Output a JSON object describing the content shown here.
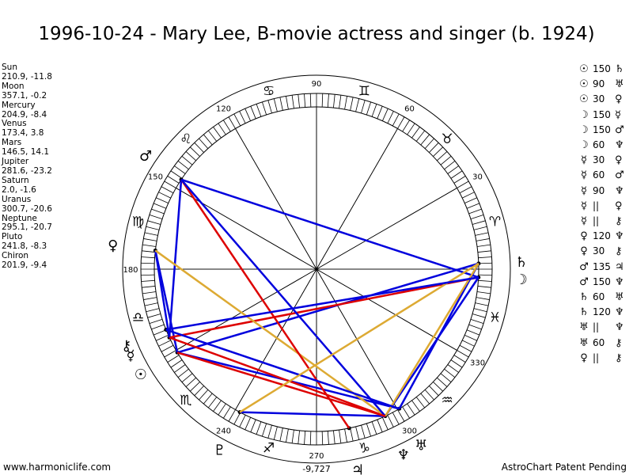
{
  "title": "1996-10-24 - Mary Lee, B-movie actress and singer (b. 1924)",
  "positions": [
    {
      "name": "Sun",
      "value": "210.9, -11.8"
    },
    {
      "name": "Moon",
      "value": "357.1, -0.2"
    },
    {
      "name": "Mercury",
      "value": "204.9, -8.4"
    },
    {
      "name": "Venus",
      "value": "173.4, 3.8"
    },
    {
      "name": "Mars",
      "value": "146.5, 14.1"
    },
    {
      "name": "Jupiter",
      "value": "281.6, -23.2"
    },
    {
      "name": "Saturn",
      "value": "2.0, -1.6"
    },
    {
      "name": "Uranus",
      "value": "300.7, -20.6"
    },
    {
      "name": "Neptune",
      "value": "295.1, -20.7"
    },
    {
      "name": "Pluto",
      "value": "241.8, -8.3"
    },
    {
      "name": "Chiron",
      "value": "201.9, -9.4"
    }
  ],
  "aspects": [
    {
      "a": "☉",
      "angle": "150",
      "b": "♄"
    },
    {
      "a": "☉",
      "angle": "90",
      "b": "♅"
    },
    {
      "a": "☉",
      "angle": "30",
      "b": "♀"
    },
    {
      "a": "☽",
      "angle": "150",
      "b": "☿"
    },
    {
      "a": "☽",
      "angle": "150",
      "b": "♂"
    },
    {
      "a": "☽",
      "angle": "60",
      "b": "♆"
    },
    {
      "a": "☿",
      "angle": "30",
      "b": "♀"
    },
    {
      "a": "☿",
      "angle": "60",
      "b": "♂"
    },
    {
      "a": "☿",
      "angle": "90",
      "b": "♆"
    },
    {
      "a": "☿",
      "angle": "||",
      "b": "♀"
    },
    {
      "a": "☿",
      "angle": "||",
      "b": "⚷"
    },
    {
      "a": "♀",
      "angle": "120",
      "b": "♆"
    },
    {
      "a": "♀",
      "angle": "30",
      "b": "⚷"
    },
    {
      "a": "♂",
      "angle": "135",
      "b": "♃"
    },
    {
      "a": "♂",
      "angle": "150",
      "b": "♆"
    },
    {
      "a": "♄",
      "angle": "60",
      "b": "♅"
    },
    {
      "a": "♄",
      "angle": "120",
      "b": "♆"
    },
    {
      "a": "♅",
      "angle": "||",
      "b": "♆"
    },
    {
      "a": "♅",
      "angle": "60",
      "b": "⚷"
    },
    {
      "a": "♀",
      "angle": "||",
      "b": "⚷"
    }
  ],
  "wheel": {
    "degree_labels": [
      "90",
      "60",
      "30",
      "330",
      "300",
      "270",
      "240",
      "180",
      "150",
      "120"
    ],
    "sign_glyphs": [
      "♈",
      "♉",
      "♊",
      "♋",
      "♌",
      "♍",
      "♎",
      "♏",
      "♐",
      "♑",
      "♒",
      "♓"
    ],
    "bottom_value": "-9,727"
  },
  "chart_data": {
    "type": "wheel",
    "planets": [
      {
        "name": "Sun",
        "glyph": "☉",
        "longitude": 210.9
      },
      {
        "name": "Moon",
        "glyph": "☽",
        "longitude": 357.1
      },
      {
        "name": "Mercury",
        "glyph": "☿",
        "longitude": 204.9
      },
      {
        "name": "Venus",
        "glyph": "♀",
        "longitude": 173.4
      },
      {
        "name": "Mars",
        "glyph": "♂",
        "longitude": 146.5
      },
      {
        "name": "Jupiter",
        "glyph": "♃",
        "longitude": 281.6
      },
      {
        "name": "Saturn",
        "glyph": "♄",
        "longitude": 2.0
      },
      {
        "name": "Uranus",
        "glyph": "♅",
        "longitude": 300.7
      },
      {
        "name": "Neptune",
        "glyph": "♆",
        "longitude": 295.1
      },
      {
        "name": "Pluto",
        "glyph": "♇",
        "longitude": 241.8
      },
      {
        "name": "Chiron",
        "glyph": "⚷",
        "longitude": 201.9
      }
    ],
    "aspect_lines": [
      {
        "from": "Sun",
        "to": "Saturn",
        "color": "#0000dd"
      },
      {
        "from": "Sun",
        "to": "Uranus",
        "color": "#0000dd"
      },
      {
        "from": "Sun",
        "to": "Venus",
        "color": "#0000dd"
      },
      {
        "from": "Moon",
        "to": "Mercury",
        "color": "#dd0000"
      },
      {
        "from": "Moon",
        "to": "Mars",
        "color": "#0000dd"
      },
      {
        "from": "Moon",
        "to": "Neptune",
        "color": "#0000dd"
      },
      {
        "from": "Mercury",
        "to": "Venus",
        "color": "#0000dd"
      },
      {
        "from": "Mercury",
        "to": "Mars",
        "color": "#0000dd"
      },
      {
        "from": "Mercury",
        "to": "Neptune",
        "color": "#dd0000"
      },
      {
        "from": "Venus",
        "to": "Neptune",
        "color": "#ddaa33"
      },
      {
        "from": "Mars",
        "to": "Jupiter",
        "color": "#dd0000"
      },
      {
        "from": "Mars",
        "to": "Neptune",
        "color": "#0000dd"
      },
      {
        "from": "Saturn",
        "to": "Uranus",
        "color": "#0000dd"
      },
      {
        "from": "Saturn",
        "to": "Neptune",
        "color": "#ddaa33"
      },
      {
        "from": "Uranus",
        "to": "Chiron",
        "color": "#0000dd"
      },
      {
        "from": "Pluto",
        "to": "Neptune",
        "color": "#0000dd"
      },
      {
        "from": "Sun",
        "to": "Neptune",
        "color": "#dd0000"
      },
      {
        "from": "Pluto",
        "to": "Saturn",
        "color": "#ddaa33"
      },
      {
        "from": "Chiron",
        "to": "Moon",
        "color": "#0000dd"
      }
    ]
  }
}
